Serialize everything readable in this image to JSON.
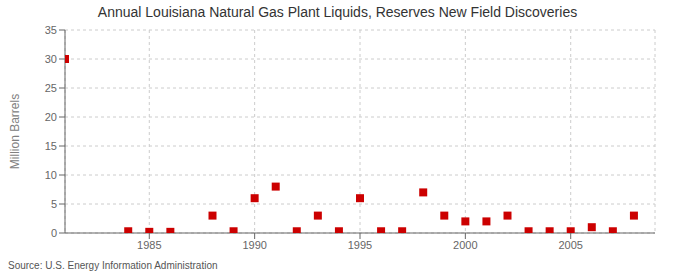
{
  "chart_data": {
    "type": "scatter",
    "title": "Annual Louisiana Natural Gas Plant Liquids, Reserves New Field Discoveries",
    "ylabel": "Million Barrels",
    "source": "Source: U.S. Energy Information Administration",
    "x": [
      1981,
      1984,
      1985,
      1986,
      1988,
      1989,
      1990,
      1991,
      1992,
      1993,
      1994,
      1995,
      1996,
      1997,
      1998,
      1999,
      2000,
      2001,
      2002,
      2003,
      2004,
      2005,
      2006,
      2007,
      2008
    ],
    "values": [
      30.0,
      0.3,
      0.2,
      0.2,
      3.0,
      0.3,
      6.0,
      8.0,
      0.3,
      3.0,
      0.3,
      6.0,
      0.3,
      0.3,
      7.0,
      3.0,
      2.0,
      2.0,
      3.0,
      0.3,
      0.3,
      0.3,
      1.0,
      0.3,
      3.0
    ],
    "color": "#cc0000",
    "marker": "square",
    "xlim": [
      1981,
      2009
    ],
    "ylim": [
      0,
      35
    ],
    "xticks": [
      1985,
      1990,
      1995,
      2000,
      2005
    ],
    "yticks": [
      0,
      5,
      10,
      15,
      20,
      25,
      30,
      35
    ],
    "grid": true
  }
}
